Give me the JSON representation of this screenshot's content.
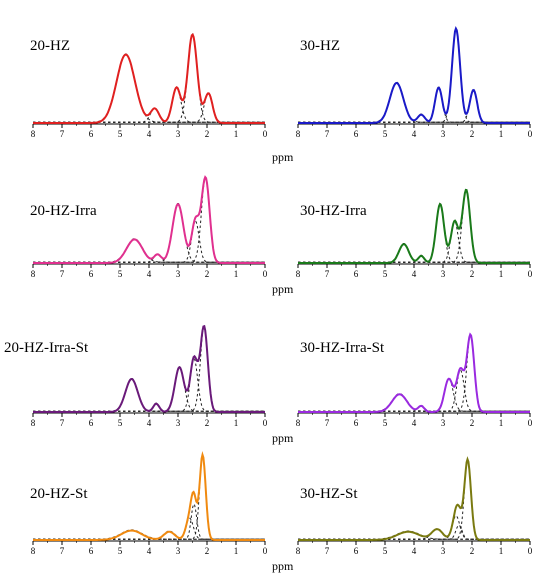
{
  "xlabel": "ppm",
  "tick_labels": [
    "8",
    "7",
    "6",
    "5",
    "4",
    "3",
    "2",
    "1",
    "0"
  ],
  "chart_data": [
    {
      "type": "line",
      "title": "20-HZ",
      "color": "#e02020",
      "xlim": [
        8,
        0
      ],
      "x_unit": "ppm",
      "fit": [
        {
          "center": 4.8,
          "height": 0.58,
          "width": 0.75
        },
        {
          "center": 3.8,
          "height": 0.12,
          "width": 0.35
        },
        {
          "center": 3.05,
          "height": 0.3,
          "width": 0.35
        },
        {
          "center": 2.5,
          "height": 0.75,
          "width": 0.38
        },
        {
          "center": 1.95,
          "height": 0.25,
          "width": 0.33
        }
      ]
    },
    {
      "type": "line",
      "title": "30-HZ",
      "color": "#1a1ac8",
      "xlim": [
        8,
        0
      ],
      "x_unit": "ppm",
      "fit": [
        {
          "center": 4.6,
          "height": 0.34,
          "width": 0.55
        },
        {
          "center": 3.75,
          "height": 0.07,
          "width": 0.3
        },
        {
          "center": 3.15,
          "height": 0.3,
          "width": 0.3
        },
        {
          "center": 2.55,
          "height": 0.8,
          "width": 0.33
        },
        {
          "center": 1.95,
          "height": 0.28,
          "width": 0.3
        }
      ]
    },
    {
      "type": "line",
      "title": "20-HZ-Irra",
      "color": "#e0308f",
      "xlim": [
        8,
        0
      ],
      "x_unit": "ppm",
      "fit": [
        {
          "center": 4.5,
          "height": 0.2,
          "width": 0.65
        },
        {
          "center": 3.7,
          "height": 0.07,
          "width": 0.3
        },
        {
          "center": 3.0,
          "height": 0.5,
          "width": 0.45
        },
        {
          "center": 2.4,
          "height": 0.35,
          "width": 0.3
        },
        {
          "center": 2.05,
          "height": 0.72,
          "width": 0.33
        }
      ]
    },
    {
      "type": "line",
      "title": "30-HZ-Irra",
      "color": "#1a7a1a",
      "xlim": [
        8,
        0
      ],
      "x_unit": "ppm",
      "fit": [
        {
          "center": 4.35,
          "height": 0.16,
          "width": 0.4
        },
        {
          "center": 3.75,
          "height": 0.06,
          "width": 0.25
        },
        {
          "center": 3.1,
          "height": 0.5,
          "width": 0.33
        },
        {
          "center": 2.6,
          "height": 0.35,
          "width": 0.3
        },
        {
          "center": 2.2,
          "height": 0.62,
          "width": 0.32
        }
      ]
    },
    {
      "type": "line",
      "title": "20-HZ-Irra-St",
      "color": "#6a1a7a",
      "xlim": [
        8,
        0
      ],
      "x_unit": "ppm",
      "fit": [
        {
          "center": 4.6,
          "height": 0.28,
          "width": 0.5
        },
        {
          "center": 3.75,
          "height": 0.07,
          "width": 0.25
        },
        {
          "center": 2.95,
          "height": 0.38,
          "width": 0.38
        },
        {
          "center": 2.45,
          "height": 0.45,
          "width": 0.3
        },
        {
          "center": 2.1,
          "height": 0.72,
          "width": 0.3
        }
      ]
    },
    {
      "type": "line",
      "title": "30-HZ-Irra-St",
      "color": "#9a2ae0",
      "xlim": [
        8,
        0
      ],
      "x_unit": "ppm",
      "fit": [
        {
          "center": 4.5,
          "height": 0.15,
          "width": 0.6
        },
        {
          "center": 3.75,
          "height": 0.05,
          "width": 0.25
        },
        {
          "center": 2.8,
          "height": 0.28,
          "width": 0.35
        },
        {
          "center": 2.4,
          "height": 0.35,
          "width": 0.3
        },
        {
          "center": 2.05,
          "height": 0.65,
          "width": 0.3
        }
      ]
    },
    {
      "type": "line",
      "title": "20-HZ-St",
      "color": "#f08a10",
      "xlim": [
        8,
        0
      ],
      "x_unit": "ppm",
      "fit": [
        {
          "center": 4.6,
          "height": 0.08,
          "width": 0.85
        },
        {
          "center": 3.3,
          "height": 0.07,
          "width": 0.45
        },
        {
          "center": 2.6,
          "height": 0.18,
          "width": 0.3
        },
        {
          "center": 2.45,
          "height": 0.3,
          "width": 0.22
        },
        {
          "center": 2.15,
          "height": 0.72,
          "width": 0.25
        }
      ]
    },
    {
      "type": "line",
      "title": "30-HZ-St",
      "color": "#7a7a10",
      "xlim": [
        8,
        0
      ],
      "x_unit": "ppm",
      "fit": [
        {
          "center": 4.2,
          "height": 0.07,
          "width": 0.9
        },
        {
          "center": 3.2,
          "height": 0.09,
          "width": 0.45
        },
        {
          "center": 2.55,
          "height": 0.2,
          "width": 0.3
        },
        {
          "center": 2.45,
          "height": 0.12,
          "width": 0.25
        },
        {
          "center": 2.15,
          "height": 0.68,
          "width": 0.27
        }
      ]
    }
  ]
}
